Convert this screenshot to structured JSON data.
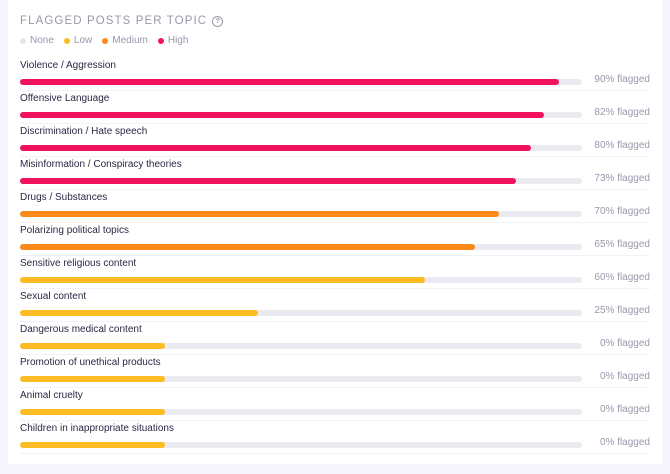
{
  "chart_data": {
    "type": "bar",
    "orientation": "horizontal",
    "title": "FLAGGED POSTS PER TOPIC",
    "legend": {
      "placement": "top-left",
      "entries": [
        {
          "name": "None",
          "color": "#e6e5ee"
        },
        {
          "name": "Low",
          "color": "#fbbd23"
        },
        {
          "name": "Medium",
          "color": "#fb8a1b"
        },
        {
          "name": "High",
          "color": "#f0125e"
        }
      ]
    },
    "categories": [
      "Violence / Aggression",
      "Offensive Language",
      "Discrimination / Hate speech",
      "Misinformation / Conspiracy theories",
      "Drugs / Substances",
      "Polarizing political topics",
      "Sensitive religious content",
      "Sexual content",
      "Dangerous medical content",
      "Promotion of unethical products",
      "Animal cruelty",
      "Children in inappropriate situations"
    ],
    "values": [
      90,
      82,
      80,
      73,
      70,
      65,
      60,
      25,
      0,
      0,
      0,
      0
    ],
    "bar_fill_fraction": [
      0.959,
      0.932,
      0.909,
      0.883,
      0.852,
      0.809,
      0.721,
      0.423,
      0.258,
      0.258,
      0.258,
      0.258
    ],
    "severity": [
      "High",
      "High",
      "High",
      "High",
      "Medium",
      "Medium",
      "Low",
      "Low",
      "Low",
      "Low",
      "Low",
      "Low"
    ],
    "value_suffix": "% flagged",
    "xlim": [
      0,
      100
    ],
    "grid": false
  },
  "header": {
    "title": "FLAGGED POSTS PER TOPIC",
    "help_icon": "help-circle-icon",
    "help_glyph": "?"
  }
}
